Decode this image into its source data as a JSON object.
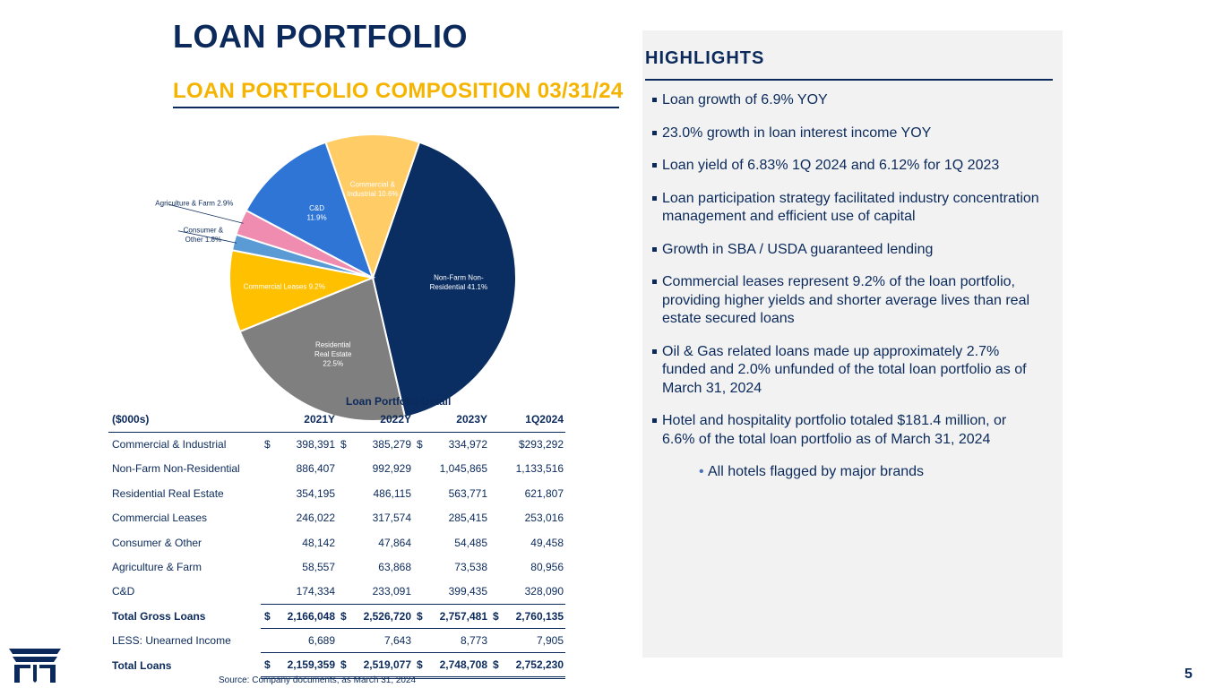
{
  "title": "LOAN PORTFOLIO",
  "subtitle": "LOAN PORTFOLIO COMPOSITION 03/31/24",
  "chart_data": {
    "type": "pie",
    "slices": [
      {
        "name": "Non-Farm Non-Residential",
        "value": 41.1,
        "label_lines": [
          "Non-Farm Non-",
          "Residential 41.1%"
        ],
        "color": "#0b2e62",
        "text_color": "#ffffff"
      },
      {
        "name": "Residential Real Estate",
        "value": 22.5,
        "label_lines": [
          "Residential",
          "Real Estate",
          "22.5%"
        ],
        "color": "#7f7f7f",
        "text_color": "#ffffff"
      },
      {
        "name": "Commercial Leases",
        "value": 9.2,
        "label_lines": [
          "Commercial Leases 9.2%"
        ],
        "color": "#ffc000",
        "text_color": "#ffffff"
      },
      {
        "name": "Consumer & Other",
        "value": 1.8,
        "label_lines": [
          "Consumer &",
          "Other 1.8%"
        ],
        "color": "#5b9bd5",
        "text_color": "#0b2a5b"
      },
      {
        "name": "Agriculture & Farm",
        "value": 2.9,
        "label_lines": [
          "Agriculture & Farm 2.9%"
        ],
        "color": "#f08cb0",
        "text_color": "#0b2a5b"
      },
      {
        "name": "C&D",
        "value": 11.9,
        "label_lines": [
          "C&D",
          "11.9%"
        ],
        "color": "#2e75d6",
        "text_color": "#ffffff"
      },
      {
        "name": "Commercial & Industrial",
        "value": 10.6,
        "label_lines": [
          "Commercial &",
          "Industrial 10.6%"
        ],
        "color": "#ffcc66",
        "text_color": "#ffffff"
      }
    ]
  },
  "table": {
    "title": "Loan Portfolio Detail",
    "header": [
      "($000s)",
      "2021Y",
      "2022Y",
      "2023Y",
      "1Q2024"
    ],
    "rows": [
      {
        "label": "Commercial & Industrial",
        "cells": [
          {
            "cur": "$",
            "v": "398,391"
          },
          {
            "cur": "$",
            "v": "385,279"
          },
          {
            "cur": "$",
            "v": "334,972"
          },
          {
            "cur": "",
            "v": "$293,292"
          }
        ]
      },
      {
        "label": "Non-Farm Non-Residential",
        "cells": [
          {
            "cur": "",
            "v": "886,407"
          },
          {
            "cur": "",
            "v": "992,929"
          },
          {
            "cur": "",
            "v": "1,045,865"
          },
          {
            "cur": "",
            "v": "1,133,516"
          }
        ]
      },
      {
        "label": "Residential Real Estate",
        "cells": [
          {
            "cur": "",
            "v": "354,195"
          },
          {
            "cur": "",
            "v": "486,115"
          },
          {
            "cur": "",
            "v": "563,771"
          },
          {
            "cur": "",
            "v": "621,807"
          }
        ]
      },
      {
        "label": "Commercial Leases",
        "cells": [
          {
            "cur": "",
            "v": "246,022"
          },
          {
            "cur": "",
            "v": "317,574"
          },
          {
            "cur": "",
            "v": "285,415"
          },
          {
            "cur": "",
            "v": "253,016"
          }
        ]
      },
      {
        "label": "Consumer & Other",
        "cells": [
          {
            "cur": "",
            "v": "48,142"
          },
          {
            "cur": "",
            "v": "47,864"
          },
          {
            "cur": "",
            "v": "54,485"
          },
          {
            "cur": "",
            "v": "49,458"
          }
        ]
      },
      {
        "label": "Agriculture & Farm",
        "cells": [
          {
            "cur": "",
            "v": "58,557"
          },
          {
            "cur": "",
            "v": "63,868"
          },
          {
            "cur": "",
            "v": "73,538"
          },
          {
            "cur": "",
            "v": "80,956"
          }
        ]
      },
      {
        "label": "C&D",
        "cells": [
          {
            "cur": "",
            "v": "174,334"
          },
          {
            "cur": "",
            "v": "233,091"
          },
          {
            "cur": "",
            "v": "399,435"
          },
          {
            "cur": "",
            "v": "328,090"
          }
        ]
      },
      {
        "label": "Total Gross Loans",
        "cells": [
          {
            "cur": "$",
            "v": "2,166,048"
          },
          {
            "cur": "$",
            "v": "2,526,720"
          },
          {
            "cur": "$",
            "v": "2,757,481"
          },
          {
            "cur": "$",
            "v": "2,760,135"
          }
        ]
      },
      {
        "label": "LESS: Unearned Income",
        "cells": [
          {
            "cur": "",
            "v": "6,689"
          },
          {
            "cur": "",
            "v": "7,643"
          },
          {
            "cur": "",
            "v": "8,773"
          },
          {
            "cur": "",
            "v": "7,905"
          }
        ]
      },
      {
        "label": "Total Loans",
        "cells": [
          {
            "cur": "$",
            "v": "2,159,359"
          },
          {
            "cur": "$",
            "v": "2,519,077"
          },
          {
            "cur": "$",
            "v": "2,748,708"
          },
          {
            "cur": "$",
            "v": "2,752,230"
          }
        ]
      }
    ]
  },
  "source": "Source: Company documents, as March 31, 2024",
  "highlights": {
    "title": "HIGHLIGHTS",
    "bullets": [
      "Loan growth of 6.9% YOY",
      "23.0% growth in loan interest income YOY",
      "Loan yield of 6.83% 1Q 2024 and 6.12% for 1Q 2023",
      "Loan participation strategy facilitated industry concentration management and efficient use of capital",
      "Growth in SBA / USDA guaranteed lending",
      "Commercial leases represent 9.2% of the loan portfolio, providing higher yields and shorter average lives than real estate secured loans",
      "Oil & Gas related loans made up approximately 2.7% funded and 2.0% unfunded of the total loan portfolio as of March 31, 2024",
      "Hotel and hospitality portfolio totaled $181.4 million, or 6.6% of the total loan portfolio as of March 31, 2024"
    ],
    "sub_bullet": "All hotels flagged by major brands"
  },
  "page_number": "5",
  "colors": {
    "navy": "#0b2a5b",
    "gold": "#f5b400",
    "panel": "#f2f2f2"
  }
}
